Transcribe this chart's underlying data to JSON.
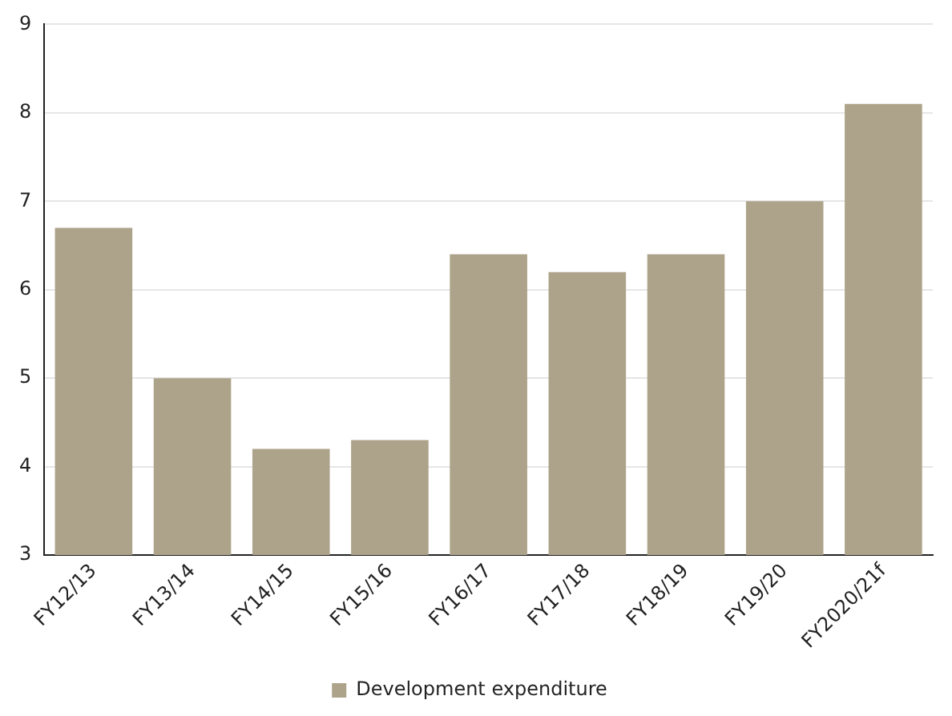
{
  "chart_data": {
    "type": "bar",
    "categories": [
      "FY12/13",
      "FY13/14",
      "FY14/15",
      "FY15/16",
      "FY16/17",
      "FY17/18",
      "FY18/19",
      "FY19/20",
      "FY2020/21f"
    ],
    "series": [
      {
        "name": "Development expenditure",
        "color": "#ada38a",
        "values": [
          6.7,
          5.0,
          4.2,
          4.3,
          6.4,
          6.2,
          6.4,
          7.0,
          8.1
        ]
      }
    ],
    "ylim": [
      3,
      9
    ],
    "yticks": [
      3,
      4,
      5,
      6,
      7,
      8,
      9
    ],
    "grid": "y",
    "legend": "bottom"
  }
}
